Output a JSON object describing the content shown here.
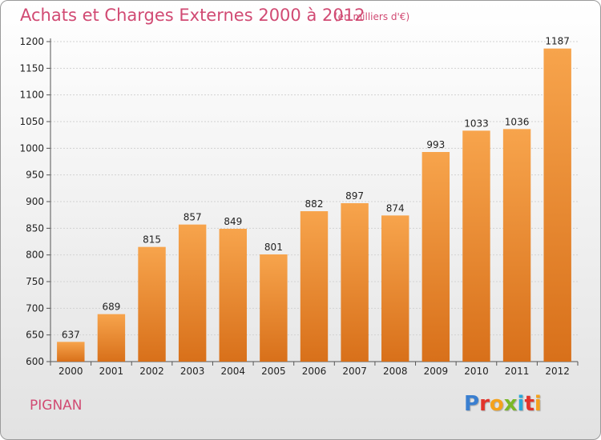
{
  "header": {
    "title": "Achats et Charges Externes 2000 à 2012",
    "subtitle": "(en milliers d'€)"
  },
  "footer": {
    "commune": "PIGNAN",
    "logo_letters": [
      "P",
      "r",
      "o",
      "x",
      "i",
      "t",
      "i"
    ],
    "logo_colors": [
      "#3a7fd0",
      "#e2332b",
      "#f4a21c",
      "#7ab827",
      "#2aa7d8",
      "#e2332b",
      "#f4a21c"
    ]
  },
  "chart_data": {
    "type": "bar",
    "categories": [
      "2000",
      "2001",
      "2002",
      "2003",
      "2004",
      "2005",
      "2006",
      "2007",
      "2008",
      "2009",
      "2010",
      "2011",
      "2012"
    ],
    "values": [
      637,
      689,
      815,
      857,
      849,
      801,
      882,
      897,
      874,
      993,
      1033,
      1036,
      1187
    ],
    "ylim": [
      600,
      1200
    ],
    "ytick_step": 50,
    "grid": true,
    "bar_color_top": "#f7a44c",
    "bar_color_bottom": "#d8701a"
  }
}
